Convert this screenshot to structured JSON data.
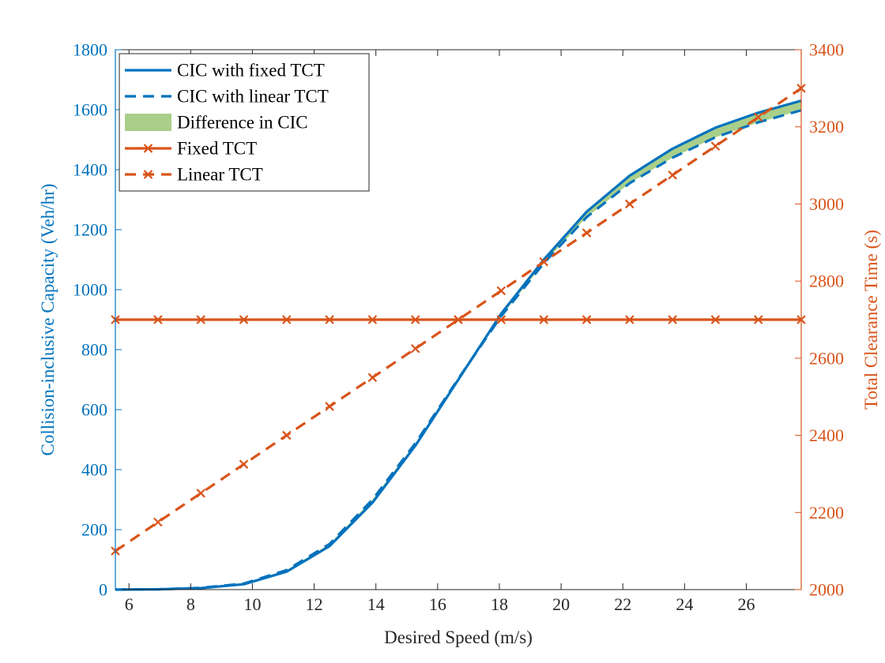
{
  "chart_data": {
    "type": "line",
    "title": "",
    "xlabel": "Desired Speed (m/s)",
    "ylabel_left": "Collision-inclusive Capacity (Veh/hr)",
    "ylabel_right": "Total Clearance Time (s)",
    "xlim": [
      5.56,
      27.78
    ],
    "ylim_left": [
      0,
      1800
    ],
    "ylim_right": [
      2000,
      3400
    ],
    "xticks": [
      "6",
      "8",
      "10",
      "12",
      "14",
      "16",
      "18",
      "20",
      "22",
      "24",
      "26"
    ],
    "yticks_left": [
      "0",
      "200",
      "400",
      "600",
      "800",
      "1000",
      "1200",
      "1400",
      "1600",
      "1800"
    ],
    "yticks_right": [
      "2000",
      "2200",
      "2400",
      "2600",
      "2800",
      "3000",
      "3200",
      "3400"
    ],
    "grid": false,
    "legend_position": "top-left",
    "colors": {
      "blue": "#0072BD",
      "orange": "#D95319",
      "fill": "#A9CF8A"
    },
    "x": [
      5.56,
      6.94,
      8.33,
      9.72,
      11.11,
      12.5,
      13.89,
      15.28,
      16.67,
      18.06,
      19.44,
      20.83,
      22.22,
      23.61,
      25.0,
      26.39,
      27.78
    ],
    "series": [
      {
        "name": "CIC with fixed TCT",
        "axis": "left",
        "style": "solid",
        "color": "#0072BD",
        "values": [
          0,
          1,
          5,
          18,
          60,
          145,
          290,
          480,
          700,
          920,
          1100,
          1260,
          1380,
          1470,
          1540,
          1590,
          1630
        ]
      },
      {
        "name": "CIC with linear TCT",
        "axis": "left",
        "style": "dashed",
        "color": "#0072BD",
        "values": [
          0,
          1,
          6,
          20,
          65,
          152,
          300,
          488,
          703,
          912,
          1088,
          1242,
          1355,
          1440,
          1508,
          1558,
          1598
        ]
      },
      {
        "name": "Fixed TCT",
        "axis": "right",
        "style": "solid-x",
        "color": "#D95319",
        "values": [
          2700,
          2700,
          2700,
          2700,
          2700,
          2700,
          2700,
          2700,
          2700,
          2700,
          2700,
          2700,
          2700,
          2700,
          2700,
          2700,
          2700
        ]
      },
      {
        "name": "Linear TCT",
        "axis": "right",
        "style": "dashed-x",
        "color": "#D95319",
        "values": [
          2100,
          2175,
          2250,
          2325,
          2400,
          2475,
          2550,
          2625,
          2700,
          2775,
          2850,
          2925,
          3000,
          3075,
          3150,
          3225,
          3300
        ]
      }
    ],
    "fill_between": {
      "name": "Difference in CIC",
      "between": [
        "CIC with fixed TCT",
        "CIC with linear TCT"
      ],
      "color": "#A9CF8A"
    },
    "legend": [
      {
        "label": "CIC with fixed TCT",
        "style": "solid",
        "color": "#0072BD"
      },
      {
        "label": "CIC with linear TCT",
        "style": "dashed",
        "color": "#0072BD"
      },
      {
        "label": "Difference in CIC",
        "style": "patch",
        "color": "#A9CF8A"
      },
      {
        "label": "Fixed TCT",
        "style": "solid-x",
        "color": "#D95319"
      },
      {
        "label": "Linear TCT",
        "style": "dashed-x",
        "color": "#D95319"
      }
    ]
  }
}
